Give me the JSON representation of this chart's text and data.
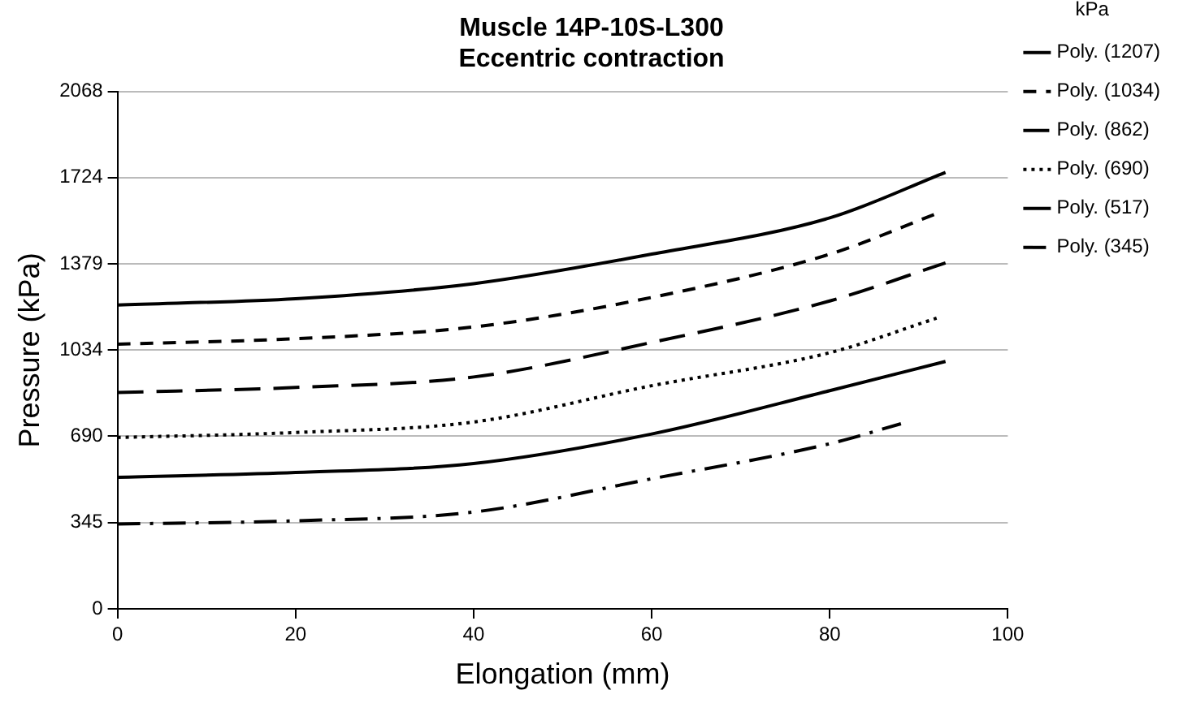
{
  "chart_data": {
    "type": "line",
    "title": "Muscle 14P-10S-L300",
    "subtitle": "Eccentric contraction",
    "xlabel": "Elongation (mm)",
    "ylabel": "Pressure (kPa)",
    "legend_title": "kPa",
    "legend": "right",
    "grid": "y",
    "marker": "none",
    "xlim": [
      0,
      100
    ],
    "xticks": [
      0,
      20,
      40,
      60,
      80,
      100
    ],
    "ylim": [
      0,
      2068
    ],
    "yticks": [
      0,
      345,
      690,
      1034,
      1379,
      1724,
      2068
    ],
    "series": [
      {
        "name": "Poly. (1207)",
        "color": "#000000",
        "line_style": "solid",
        "x": [
          0,
          20,
          40,
          60,
          80,
          93
        ],
        "values": [
          1215,
          1240,
          1300,
          1418,
          1563,
          1745
        ]
      },
      {
        "name": "Poly. (1034)",
        "color": "#000000",
        "line_style": "dashed",
        "x": [
          0,
          20,
          40,
          60,
          80,
          92
        ],
        "values": [
          1058,
          1080,
          1127,
          1245,
          1418,
          1580
        ]
      },
      {
        "name": "Poly. (862)",
        "color": "#000000",
        "line_style": "dashed",
        "x": [
          0,
          20,
          40,
          60,
          80,
          93
        ],
        "values": [
          865,
          885,
          927,
          1065,
          1231,
          1383
        ]
      },
      {
        "name": "Poly. (690)",
        "color": "#000000",
        "line_style": "dotted",
        "x": [
          0,
          20,
          40,
          60,
          80,
          92
        ],
        "values": [
          685,
          705,
          747,
          892,
          1024,
          1162
        ]
      },
      {
        "name": "Poly. (517)",
        "color": "#000000",
        "line_style": "solid",
        "x": [
          0,
          20,
          40,
          60,
          80,
          93
        ],
        "values": [
          526,
          545,
          581,
          699,
          872,
          989
        ]
      },
      {
        "name": "Poly. (345)",
        "color": "#000000",
        "line_style": "dashed",
        "x": [
          0,
          20,
          40,
          60,
          80,
          88
        ],
        "values": [
          339,
          352,
          387,
          520,
          660,
          740
        ]
      }
    ]
  }
}
